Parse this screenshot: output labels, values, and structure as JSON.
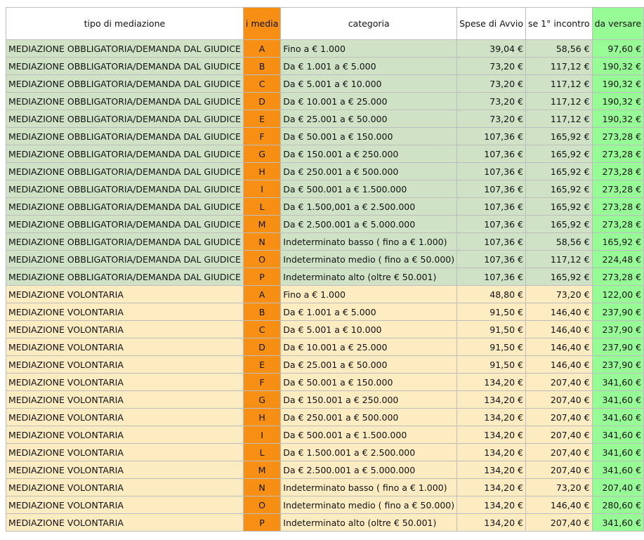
{
  "headers": {
    "tipo": "tipo di mediazione",
    "codice": "i media",
    "categoria": "categoria",
    "avvio": "Spese di Avvio",
    "incontro": "se 1° incontro",
    "totale": "da versare"
  },
  "rows": [
    {
      "tipo": "MEDIAZIONE OBBLIGATORIA/DEMANDA DAL GIUDICE",
      "codice": "A",
      "categoria": "Fino a € 1.000",
      "avvio": "39,04 €",
      "incontro": "58,56 €",
      "totale": "97,60 €",
      "group": "g"
    },
    {
      "tipo": "MEDIAZIONE OBBLIGATORIA/DEMANDA DAL GIUDICE",
      "codice": "B",
      "categoria": "Da € 1.001 a € 5.000",
      "avvio": "73,20 €",
      "incontro": "117,12 €",
      "totale": "190,32 €",
      "group": "g"
    },
    {
      "tipo": "MEDIAZIONE OBBLIGATORIA/DEMANDA DAL GIUDICE",
      "codice": "C",
      "categoria": "Da € 5.001 a € 10.000",
      "avvio": "73,20 €",
      "incontro": "117,12 €",
      "totale": "190,32 €",
      "group": "g"
    },
    {
      "tipo": "MEDIAZIONE OBBLIGATORIA/DEMANDA DAL GIUDICE",
      "codice": "D",
      "categoria": "Da € 10.001 a € 25.000",
      "avvio": "73,20 €",
      "incontro": "117,12 €",
      "totale": "190,32 €",
      "group": "g"
    },
    {
      "tipo": "MEDIAZIONE OBBLIGATORIA/DEMANDA DAL GIUDICE",
      "codice": "E",
      "categoria": "Da € 25.001 a € 50.000",
      "avvio": "73,20 €",
      "incontro": "117,12 €",
      "totale": "190,32 €",
      "group": "g"
    },
    {
      "tipo": "MEDIAZIONE OBBLIGATORIA/DEMANDA DAL GIUDICE",
      "codice": "F",
      "categoria": "Da € 50.001 a € 150.000",
      "avvio": "107,36 €",
      "incontro": "165,92 €",
      "totale": "273,28 €",
      "group": "g"
    },
    {
      "tipo": "MEDIAZIONE OBBLIGATORIA/DEMANDA DAL GIUDICE",
      "codice": "G",
      "categoria": "Da € 150.001 a € 250.000",
      "avvio": "107,36 €",
      "incontro": "165,92 €",
      "totale": "273,28 €",
      "group": "g"
    },
    {
      "tipo": "MEDIAZIONE OBBLIGATORIA/DEMANDA DAL GIUDICE",
      "codice": "H",
      "categoria": "Da € 250.001 a € 500.000",
      "avvio": "107,36 €",
      "incontro": "165,92 €",
      "totale": "273,28 €",
      "group": "g"
    },
    {
      "tipo": "MEDIAZIONE OBBLIGATORIA/DEMANDA DAL GIUDICE",
      "codice": "I",
      "categoria": "Da € 500.001 a € 1.500.000",
      "avvio": "107,36 €",
      "incontro": "165,92 €",
      "totale": "273,28 €",
      "group": "g"
    },
    {
      "tipo": "MEDIAZIONE OBBLIGATORIA/DEMANDA DAL GIUDICE",
      "codice": "L",
      "categoria": "Da € 1.500,001 a € 2.500.000",
      "avvio": "107,36 €",
      "incontro": "165,92 €",
      "totale": "273,28 €",
      "group": "g"
    },
    {
      "tipo": "MEDIAZIONE OBBLIGATORIA/DEMANDA DAL GIUDICE",
      "codice": "M",
      "categoria": "Da € 2.500.001 a € 5.000.000",
      "avvio": "107,36 €",
      "incontro": "165,92 €",
      "totale": "273,28 €",
      "group": "g"
    },
    {
      "tipo": "MEDIAZIONE OBBLIGATORIA/DEMANDA DAL GIUDICE",
      "codice": "N",
      "categoria": "Indeterminato basso ( fino a € 1.000)",
      "avvio": "107,36 €",
      "incontro": "58,56 €",
      "totale": "165,92 €",
      "group": "g"
    },
    {
      "tipo": "MEDIAZIONE OBBLIGATORIA/DEMANDA DAL GIUDICE",
      "codice": "O",
      "categoria": "Indeterminato medio ( fino a € 50.000)",
      "avvio": "107,36 €",
      "incontro": "117,12 €",
      "totale": "224,48 €",
      "group": "g"
    },
    {
      "tipo": "MEDIAZIONE OBBLIGATORIA/DEMANDA DAL GIUDICE",
      "codice": "P",
      "categoria": "Indeterminato alto (oltre € 50.001)",
      "avvio": "107,36 €",
      "incontro": "165,92 €",
      "totale": "273,28 €",
      "group": "g"
    },
    {
      "tipo": "MEDIAZIONE VOLONTARIA",
      "codice": "A",
      "categoria": "Fino a € 1.000",
      "avvio": "48,80 €",
      "incontro": "73,20 €",
      "totale": "122,00 €",
      "group": "y"
    },
    {
      "tipo": "MEDIAZIONE VOLONTARIA",
      "codice": "B",
      "categoria": "Da € 1.001 a € 5.000",
      "avvio": "91,50 €",
      "incontro": "146,40 €",
      "totale": "237,90 €",
      "group": "y"
    },
    {
      "tipo": "MEDIAZIONE VOLONTARIA",
      "codice": "C",
      "categoria": "Da € 5.001 a € 10.000",
      "avvio": "91,50 €",
      "incontro": "146,40 €",
      "totale": "237,90 €",
      "group": "y"
    },
    {
      "tipo": "MEDIAZIONE VOLONTARIA",
      "codice": "D",
      "categoria": "Da € 10.001 a € 25.000",
      "avvio": "91,50 €",
      "incontro": "146,40 €",
      "totale": "237,90 €",
      "group": "y"
    },
    {
      "tipo": "MEDIAZIONE VOLONTARIA",
      "codice": "E",
      "categoria": "Da € 25.001 a € 50.000",
      "avvio": "91,50 €",
      "incontro": "146,40 €",
      "totale": "237,90 €",
      "group": "y"
    },
    {
      "tipo": "MEDIAZIONE VOLONTARIA",
      "codice": "F",
      "categoria": "Da € 50.001 a € 150.000",
      "avvio": "134,20 €",
      "incontro": "207,40 €",
      "totale": "341,60 €",
      "group": "y"
    },
    {
      "tipo": "MEDIAZIONE VOLONTARIA",
      "codice": "G",
      "categoria": "Da € 150.001 a € 250.000",
      "avvio": "134,20 €",
      "incontro": "207,40 €",
      "totale": "341,60 €",
      "group": "y"
    },
    {
      "tipo": "MEDIAZIONE VOLONTARIA",
      "codice": "H",
      "categoria": "Da € 250.001 a € 500.000",
      "avvio": "134,20 €",
      "incontro": "207,40 €",
      "totale": "341,60 €",
      "group": "y"
    },
    {
      "tipo": "MEDIAZIONE VOLONTARIA",
      "codice": "I",
      "categoria": "Da € 500.001 a € 1.500.000",
      "avvio": "134,20 €",
      "incontro": "207,40 €",
      "totale": "341,60 €",
      "group": "y"
    },
    {
      "tipo": "MEDIAZIONE VOLONTARIA",
      "codice": "L",
      "categoria": "Da € 1.500.001 a € 2.500.000",
      "avvio": "134,20 €",
      "incontro": "207,40 €",
      "totale": "341,60 €",
      "group": "y"
    },
    {
      "tipo": "MEDIAZIONE VOLONTARIA",
      "codice": "M",
      "categoria": "Da € 2.500.001 a € 5.000.000",
      "avvio": "134,20 €",
      "incontro": "207,40 €",
      "totale": "341,60 €",
      "group": "y"
    },
    {
      "tipo": "MEDIAZIONE VOLONTARIA",
      "codice": "N",
      "categoria": "Indeterminato basso ( fino a € 1.000)",
      "avvio": "134,20 €",
      "incontro": "73,20 €",
      "totale": "207,40 €",
      "group": "y"
    },
    {
      "tipo": "MEDIAZIONE VOLONTARIA",
      "codice": "O",
      "categoria": "Indeterminato medio ( fino a € 50.000)",
      "avvio": "134,20 €",
      "incontro": "146,40 €",
      "totale": "280,60 €",
      "group": "y"
    },
    {
      "tipo": "MEDIAZIONE VOLONTARIA",
      "codice": "P",
      "categoria": "Indeterminato alto (oltre € 50.001)",
      "avvio": "134,20 €",
      "incontro": "207,40 €",
      "totale": "341,60 €",
      "group": "y"
    }
  ],
  "colors": {
    "green_row": "#cfe2c6",
    "yellow_row": "#fdebc2",
    "orange_col": "#f68f13",
    "total_col": "#97fb96"
  }
}
